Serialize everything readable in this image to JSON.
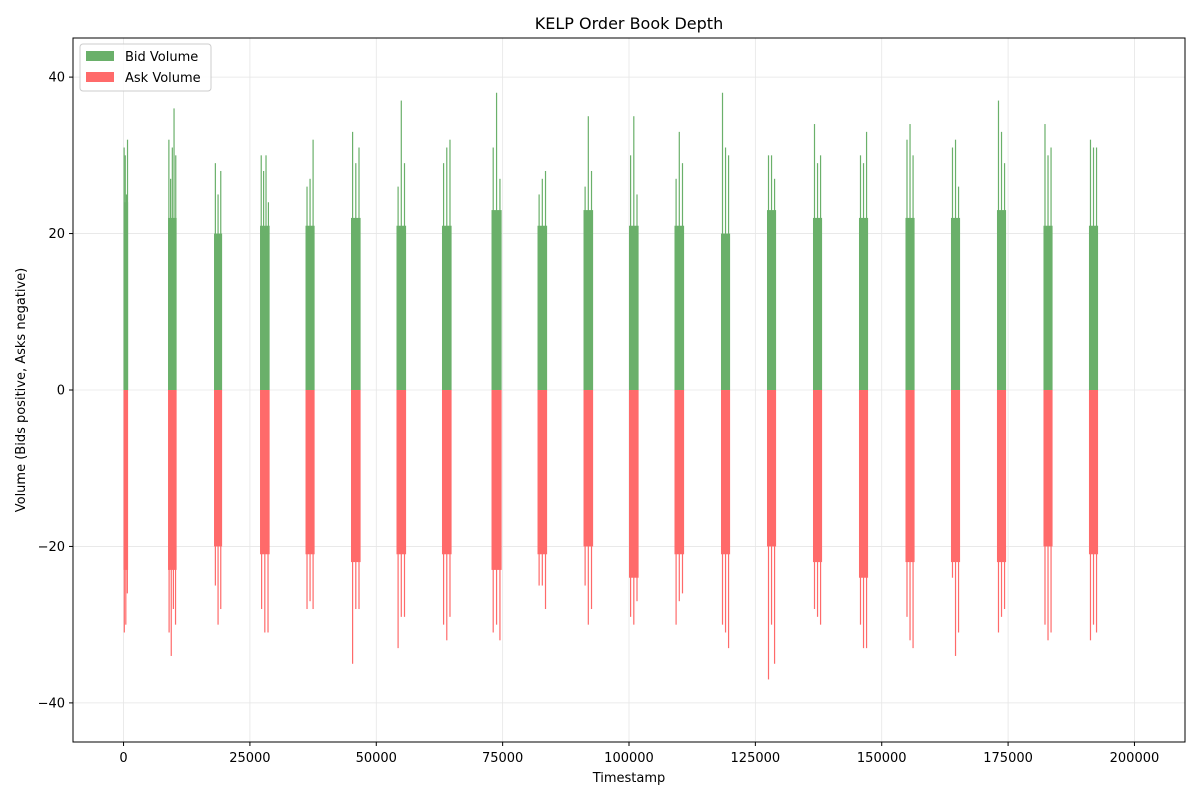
{
  "chart_data": {
    "type": "bar",
    "title": "KELP Order Book Depth",
    "xlabel": "Timestamp",
    "ylabel": "Volume (Bids positive, Asks negative)",
    "xlim": [
      -10000,
      210000
    ],
    "ylim": [
      -45,
      45
    ],
    "xticks": [
      0,
      25000,
      50000,
      75000,
      100000,
      125000,
      150000,
      175000,
      200000
    ],
    "xtick_labels": [
      "0",
      "25000",
      "50000",
      "75000",
      "100000",
      "125000",
      "150000",
      "175000",
      "200000"
    ],
    "yticks": [
      -40,
      -20,
      0,
      20,
      40
    ],
    "ytick_labels": [
      "−40",
      "−20",
      "0",
      "20",
      "40"
    ],
    "grid": true,
    "legend_position": "top-left",
    "colors": {
      "bid": "#6ab06a",
      "ask": "#ff6a6a"
    },
    "series": [
      {
        "name": "Bid Volume",
        "description": "Green bars above zero, one cluster per 1000-step day block",
        "clusters": [
          {
            "start": 0,
            "end": 900,
            "base": 24,
            "peaks": [
              31,
              30,
              25,
              32
            ]
          },
          {
            "start": 8800,
            "end": 10500,
            "base": 22,
            "peaks": [
              32,
              27,
              31,
              36,
              30
            ]
          },
          {
            "start": 17900,
            "end": 19500,
            "base": 20,
            "peaks": [
              29,
              25,
              28
            ]
          },
          {
            "start": 27000,
            "end": 28900,
            "base": 21,
            "peaks": [
              30,
              28,
              30,
              24
            ]
          },
          {
            "start": 36000,
            "end": 37800,
            "base": 21,
            "peaks": [
              26,
              27,
              32
            ]
          },
          {
            "start": 45000,
            "end": 46900,
            "base": 22,
            "peaks": [
              33,
              29,
              31
            ]
          },
          {
            "start": 54000,
            "end": 55900,
            "base": 21,
            "peaks": [
              26,
              37,
              29
            ]
          },
          {
            "start": 63000,
            "end": 64900,
            "base": 21,
            "peaks": [
              29,
              31,
              32
            ]
          },
          {
            "start": 72800,
            "end": 74800,
            "base": 23,
            "peaks": [
              31,
              38,
              27
            ]
          },
          {
            "start": 81900,
            "end": 83800,
            "base": 21,
            "peaks": [
              25,
              27,
              28
            ]
          },
          {
            "start": 91000,
            "end": 92900,
            "base": 23,
            "peaks": [
              26,
              35,
              28
            ]
          },
          {
            "start": 100000,
            "end": 101900,
            "base": 21,
            "peaks": [
              30,
              35,
              25
            ]
          },
          {
            "start": 109000,
            "end": 110900,
            "base": 21,
            "peaks": [
              27,
              33,
              29
            ]
          },
          {
            "start": 118200,
            "end": 120000,
            "base": 20,
            "peaks": [
              38,
              31,
              30
            ]
          },
          {
            "start": 127300,
            "end": 129100,
            "base": 23,
            "peaks": [
              30,
              30,
              27
            ]
          },
          {
            "start": 136400,
            "end": 138200,
            "base": 22,
            "peaks": [
              34,
              29,
              30
            ]
          },
          {
            "start": 145500,
            "end": 147300,
            "base": 22,
            "peaks": [
              30,
              29,
              33
            ]
          },
          {
            "start": 154700,
            "end": 156500,
            "base": 22,
            "peaks": [
              32,
              34,
              30
            ]
          },
          {
            "start": 163700,
            "end": 165500,
            "base": 22,
            "peaks": [
              31,
              32,
              26
            ]
          },
          {
            "start": 172800,
            "end": 174600,
            "base": 23,
            "peaks": [
              37,
              33,
              29
            ]
          },
          {
            "start": 182000,
            "end": 183800,
            "base": 21,
            "peaks": [
              34,
              30,
              31
            ]
          },
          {
            "start": 191000,
            "end": 192800,
            "base": 21,
            "peaks": [
              32,
              31,
              31
            ]
          }
        ]
      },
      {
        "name": "Ask Volume",
        "description": "Red bars below zero, mirrored clusters",
        "clusters": [
          {
            "start": 0,
            "end": 900,
            "base": -23,
            "peaks": [
              -31,
              -30,
              -26
            ]
          },
          {
            "start": 8800,
            "end": 10500,
            "base": -23,
            "peaks": [
              -31,
              -34,
              -28,
              -30
            ]
          },
          {
            "start": 17900,
            "end": 19500,
            "base": -20,
            "peaks": [
              -25,
              -30,
              -28
            ]
          },
          {
            "start": 27000,
            "end": 28900,
            "base": -21,
            "peaks": [
              -28,
              -31,
              -31
            ]
          },
          {
            "start": 36000,
            "end": 37800,
            "base": -21,
            "peaks": [
              -28,
              -27,
              -28
            ]
          },
          {
            "start": 45000,
            "end": 46900,
            "base": -22,
            "peaks": [
              -35,
              -28,
              -28
            ]
          },
          {
            "start": 54000,
            "end": 55900,
            "base": -21,
            "peaks": [
              -33,
              -29,
              -29
            ]
          },
          {
            "start": 63000,
            "end": 64900,
            "base": -21,
            "peaks": [
              -30,
              -32,
              -29
            ]
          },
          {
            "start": 72800,
            "end": 74800,
            "base": -23,
            "peaks": [
              -31,
              -30,
              -32
            ]
          },
          {
            "start": 81900,
            "end": 83800,
            "base": -21,
            "peaks": [
              -25,
              -25,
              -28
            ]
          },
          {
            "start": 91000,
            "end": 92900,
            "base": -20,
            "peaks": [
              -25,
              -30,
              -28
            ]
          },
          {
            "start": 100000,
            "end": 101900,
            "base": -24,
            "peaks": [
              -29,
              -30,
              -27
            ]
          },
          {
            "start": 109000,
            "end": 110900,
            "base": -21,
            "peaks": [
              -30,
              -27,
              -26
            ]
          },
          {
            "start": 118200,
            "end": 120000,
            "base": -21,
            "peaks": [
              -30,
              -31,
              -33
            ]
          },
          {
            "start": 127300,
            "end": 129100,
            "base": -20,
            "peaks": [
              -37,
              -30,
              -35
            ]
          },
          {
            "start": 136400,
            "end": 138200,
            "base": -22,
            "peaks": [
              -28,
              -29,
              -30
            ]
          },
          {
            "start": 145500,
            "end": 147300,
            "base": -24,
            "peaks": [
              -30,
              -33,
              -33
            ]
          },
          {
            "start": 154700,
            "end": 156500,
            "base": -22,
            "peaks": [
              -29,
              -32,
              -33
            ]
          },
          {
            "start": 163700,
            "end": 165500,
            "base": -22,
            "peaks": [
              -24,
              -34,
              -31
            ]
          },
          {
            "start": 172800,
            "end": 174600,
            "base": -22,
            "peaks": [
              -31,
              -29,
              -28
            ]
          },
          {
            "start": 182000,
            "end": 183800,
            "base": -20,
            "peaks": [
              -30,
              -32,
              -31
            ]
          },
          {
            "start": 191000,
            "end": 192800,
            "base": -21,
            "peaks": [
              -32,
              -30,
              -31
            ]
          }
        ]
      }
    ]
  }
}
